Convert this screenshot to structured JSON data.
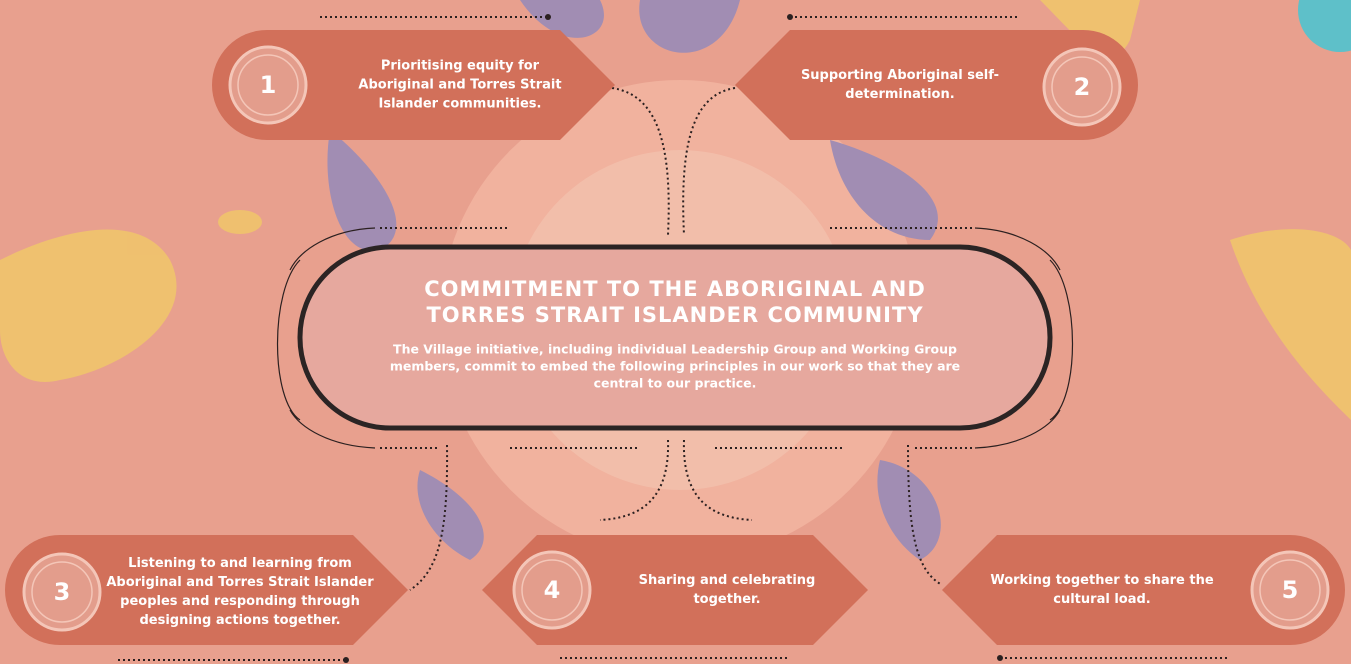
{
  "center": {
    "title": [
      "COMMITMENT TO THE ABORIGINAL AND",
      "TORRES STRAIT ISLANDER COMMUNITY"
    ],
    "description": [
      "The Village initiative, including individual Leadership Group and Working Group",
      "members, commit to embed the following principles in our work so that they are",
      "central to our practice."
    ]
  },
  "principles": [
    {
      "number": 1,
      "text": [
        "Prioritising equity for",
        "Aboriginal and Torres Strait",
        "Islander communities."
      ]
    },
    {
      "number": 2,
      "text": [
        "Supporting Aboriginal self-",
        "determination."
      ]
    },
    {
      "number": 3,
      "text": [
        "Listening to and learning from",
        "Aboriginal and Torres Strait Islander",
        "peoples and responding through",
        "designing actions together."
      ]
    },
    {
      "number": 4,
      "text": [
        "Sharing and celebrating",
        "together."
      ]
    },
    {
      "number": 5,
      "text": [
        "Working together to share the",
        "cultural load."
      ]
    }
  ]
}
